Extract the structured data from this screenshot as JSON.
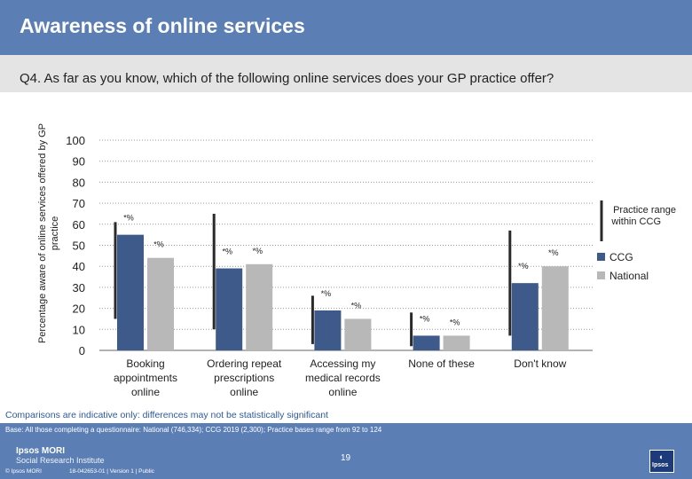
{
  "header": {
    "title": "Awareness of online services"
  },
  "question": {
    "text": "Q4. As far as you know, which of the following online services does your GP practice offer?"
  },
  "chart_data": {
    "type": "bar",
    "ylabel": "Percentage aware of online services offered by GP practice",
    "ylim": [
      0,
      100
    ],
    "yticks": [
      0,
      10,
      20,
      30,
      40,
      50,
      60,
      70,
      80,
      90,
      100
    ],
    "categories": [
      [
        "Booking",
        "appointments",
        "online"
      ],
      [
        "Ordering repeat",
        "prescriptions",
        "online"
      ],
      [
        "Accessing my",
        "medical records",
        "online"
      ],
      [
        "None of these"
      ],
      [
        "Don't know"
      ]
    ],
    "series": [
      {
        "name": "CCG",
        "color": "#3d5a8a",
        "values": [
          55,
          39,
          19,
          7,
          32
        ],
        "labels": [
          "*%",
          "*%",
          "*%",
          "*%",
          "*%"
        ]
      },
      {
        "name": "National",
        "color": "#b8b8b8",
        "values": [
          44,
          41,
          15,
          7,
          40
        ],
        "labels": [
          "*%",
          "*%",
          "*%",
          "*%",
          "*%"
        ]
      }
    ],
    "ranges": [
      [
        15,
        61
      ],
      [
        10,
        65
      ],
      [
        3,
        26
      ],
      [
        2,
        18
      ],
      [
        7,
        57
      ]
    ],
    "legend": {
      "range_label": "Practice range within CCG",
      "placement": "right"
    },
    "grid": true
  },
  "note": "Comparisons are indicative only: differences may not be statistically significant",
  "footer": {
    "base": "Base: All those completing a questionnaire: National (746,334); CCG 2019 (2,300); Practice bases range from 92 to 124",
    "brand_line1": "Ipsos MORI",
    "brand_line2": "Social Research Institute",
    "page_number": "19",
    "copyright": "© Ipsos MORI",
    "job": "18-042653-01 | Version 1 | Public",
    "logo_text": "Ipsos"
  }
}
